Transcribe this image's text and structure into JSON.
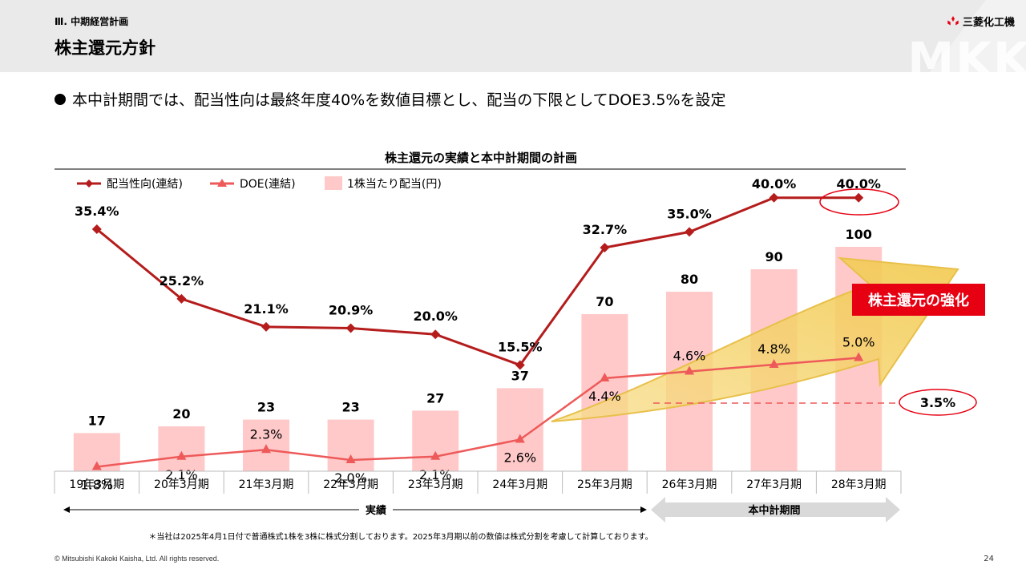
{
  "header": {
    "section": "Ⅲ. 中期経営計画",
    "title": "株主還元方針",
    "logo_text": "三菱化工機",
    "watermark": "MKK"
  },
  "bullet_text": "本中計期間では、配当性向は最終年度40%を数値目標とし、配当の下限としてDOE3.5%を設定",
  "chart_data": {
    "type": "bar",
    "title": "株主還元の実績と本中計期間の計画",
    "categories": [
      "19年3月期",
      "20年3月期",
      "21年3月期",
      "22年3月期",
      "23年3月期",
      "24年3月期",
      "25年3月期",
      "26年3月期",
      "27年3月期",
      "28年3月期"
    ],
    "series": [
      {
        "name": "1株当たり配当(円)",
        "type": "bar",
        "values": [
          17,
          20,
          23,
          23,
          27,
          37,
          70,
          80,
          90,
          100
        ],
        "labels": [
          "17",
          "20",
          "23",
          "23",
          "27",
          "37",
          "70",
          "80",
          "90",
          "100"
        ]
      },
      {
        "name": "配当性向(連結)",
        "type": "line",
        "values": [
          35.4,
          25.2,
          21.1,
          20.9,
          20.0,
          15.5,
          32.7,
          35.0,
          40.0,
          40.0
        ],
        "labels": [
          "35.4%",
          "25.2%",
          "21.1%",
          "20.9%",
          "20.0%",
          "15.5%",
          "32.7%",
          "35.0%",
          "40.0%",
          "40.0%"
        ]
      },
      {
        "name": "DOE(連結)",
        "type": "line",
        "values": [
          1.8,
          2.1,
          2.3,
          2.0,
          2.1,
          2.6,
          4.4,
          4.6,
          4.8,
          5.0
        ],
        "labels": [
          "1.8%",
          "2.1%",
          "2.3%",
          "2.0%",
          "2.1%",
          "2.6%",
          "4.4%",
          "4.6%",
          "4.8%",
          "5.0%"
        ]
      }
    ],
    "legend_position": "top-left",
    "annotations": {
      "doe_floor": "3.5%",
      "callout": "株主還元の強化",
      "actual_label": "実績",
      "plan_label": "本中計期間"
    },
    "colors": {
      "bar": "#ffc9c9",
      "payout": "#b51c1c",
      "doe": "#ee5a5a",
      "callout_bg": "#e60012",
      "arrow": "#f2c94c"
    }
  },
  "footnote": "＊当社は2025年4月1日付で普通株式1株を3株に株式分割しております。2025年3月期以前の数値は株式分割を考慮して計算しております。",
  "copyright": "© Mitsubishi Kakoki Kaisha, Ltd. All rights reserved.",
  "page_number": "24"
}
